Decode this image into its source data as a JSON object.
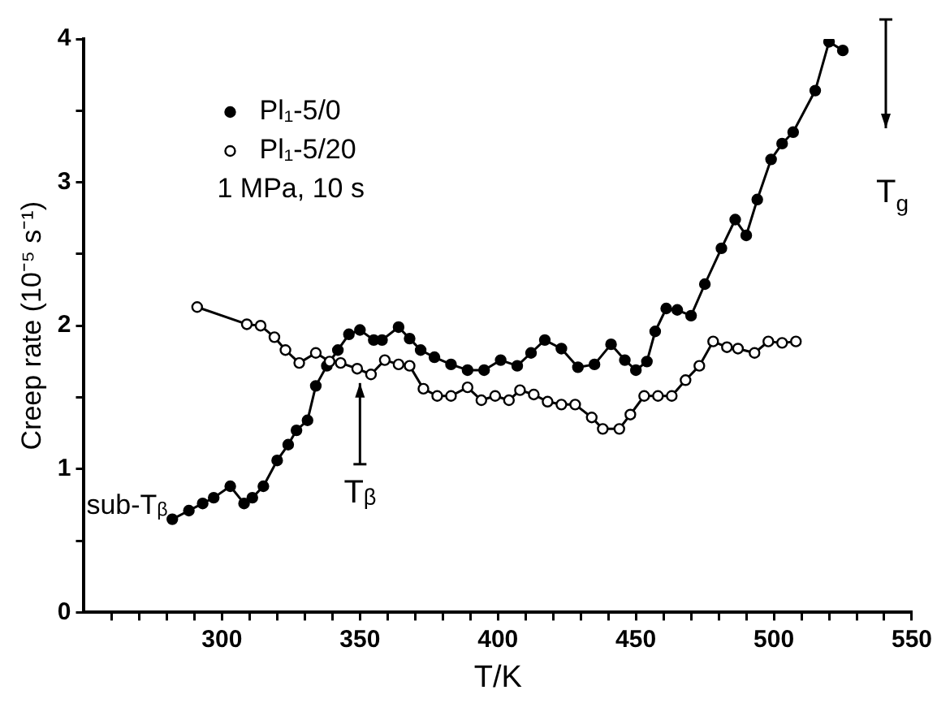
{
  "chart_data": {
    "type": "line",
    "xlabel": "T/K",
    "ylabel": "Creep rate (10⁻⁵ s⁻¹)",
    "xlim": [
      250,
      550
    ],
    "xticks": [
      {
        "value": 260,
        "label": null
      },
      {
        "value": 270,
        "label": null
      },
      {
        "value": 280,
        "label": null
      },
      {
        "value": 290,
        "label": null
      },
      300,
      {
        "value": 310,
        "label": null
      },
      {
        "value": 320,
        "label": null
      },
      {
        "value": 330,
        "label": null
      },
      {
        "value": 340,
        "label": null
      },
      350,
      {
        "value": 360,
        "label": null
      },
      {
        "value": 370,
        "label": null
      },
      {
        "value": 380,
        "label": null
      },
      {
        "value": 390,
        "label": null
      },
      400,
      {
        "value": 410,
        "label": null
      },
      {
        "value": 420,
        "label": null
      },
      {
        "value": 430,
        "label": null
      },
      {
        "value": 440,
        "label": null
      },
      450,
      {
        "value": 460,
        "label": null
      },
      {
        "value": 470,
        "label": null
      },
      {
        "value": 480,
        "label": null
      },
      {
        "value": 490,
        "label": null
      },
      500,
      {
        "value": 510,
        "label": null
      },
      {
        "value": 520,
        "label": null
      },
      {
        "value": 530,
        "label": null
      },
      {
        "value": 540,
        "label": null
      },
      550
    ],
    "ylim": [
      0,
      4
    ],
    "yticks": [
      0,
      {
        "value": 0.5,
        "label": null
      },
      1,
      {
        "value": 1.5,
        "label": null
      },
      2,
      {
        "value": 2.5,
        "label": null
      },
      3,
      {
        "value": 3.5,
        "label": null
      },
      4
    ],
    "grid": false,
    "legend": "top left",
    "marker": "circle",
    "line_style": "solid",
    "series": [
      {
        "name": "Pl₁-5/0",
        "color": "#000000",
        "x": [
          282,
          288,
          293,
          297,
          303,
          308,
          311,
          315,
          320,
          324,
          327,
          331,
          334,
          338,
          342,
          346,
          350,
          355,
          358,
          364,
          368,
          372,
          377,
          383,
          389,
          395,
          401,
          407,
          412,
          417,
          423,
          429,
          435,
          441,
          446,
          450,
          454,
          457,
          461,
          465,
          470,
          475,
          481,
          486,
          490,
          494,
          499,
          503,
          507,
          515,
          520,
          525
        ],
        "values": [
          0.65,
          0.71,
          0.76,
          0.8,
          0.88,
          0.76,
          0.8,
          0.88,
          1.06,
          1.17,
          1.27,
          1.34,
          1.58,
          1.72,
          1.83,
          1.94,
          1.97,
          1.9,
          1.9,
          1.99,
          1.91,
          1.83,
          1.78,
          1.73,
          1.69,
          1.69,
          1.76,
          1.72,
          1.81,
          1.9,
          1.84,
          1.71,
          1.73,
          1.87,
          1.76,
          1.69,
          1.75,
          1.96,
          2.12,
          2.11,
          2.07,
          2.29,
          2.54,
          2.74,
          2.63,
          2.88,
          3.16,
          3.27,
          3.35,
          3.64,
          3.98,
          3.92
        ]
      },
      {
        "name": "Pl₁-5/20",
        "color": "#000000",
        "x": [
          291,
          309,
          314,
          319,
          323,
          328,
          334,
          339,
          343,
          349,
          354,
          359,
          364,
          368,
          373,
          378,
          383,
          389,
          394,
          399,
          404,
          408,
          413,
          418,
          423,
          428,
          434,
          438,
          444,
          448,
          453,
          458,
          463,
          468,
          473,
          478,
          483,
          487,
          493,
          498,
          503,
          508
        ],
        "values": [
          2.13,
          2.01,
          2.0,
          1.92,
          1.83,
          1.74,
          1.81,
          1.75,
          1.74,
          1.7,
          1.66,
          1.76,
          1.73,
          1.72,
          1.56,
          1.51,
          1.51,
          1.57,
          1.48,
          1.51,
          1.48,
          1.55,
          1.52,
          1.47,
          1.45,
          1.45,
          1.36,
          1.28,
          1.28,
          1.38,
          1.51,
          1.51,
          1.51,
          1.62,
          1.72,
          1.89,
          1.85,
          1.84,
          1.81,
          1.89,
          1.88,
          1.89
        ]
      }
    ],
    "annotations": [
      "1 MPa, 10 s",
      {
        "text": "sub-Tᵦ",
        "x": 305,
        "y": 0.9
      },
      {
        "text": "Tᵦ",
        "x": 350,
        "y": 1.6
      },
      "T$_{g}$"
    ]
  }
}
